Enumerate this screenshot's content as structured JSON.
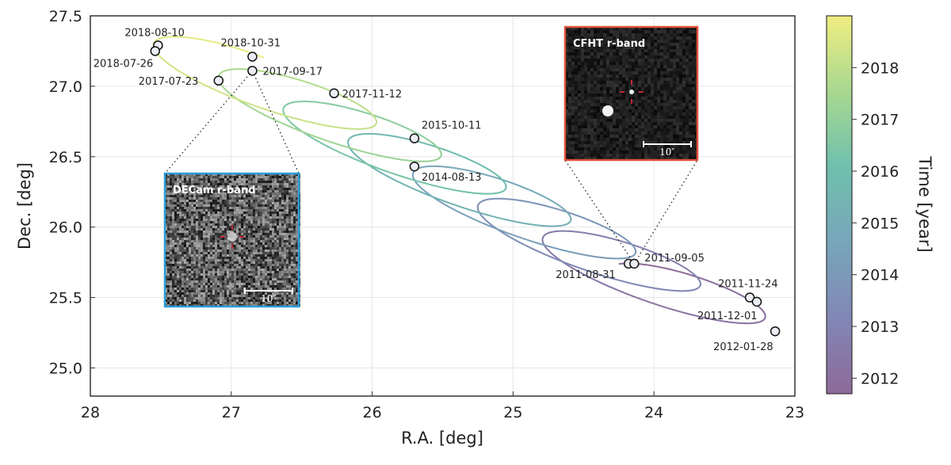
{
  "chart_data": {
    "type": "scatter",
    "title": "",
    "xlabel": "R.A. [deg]",
    "ylabel": "Dec. [deg]",
    "xlim": [
      28,
      23
    ],
    "ylim": [
      24.8,
      27.5
    ],
    "x_inverted": true,
    "grid": true,
    "xticks": [
      28,
      27,
      26,
      25,
      24,
      23
    ],
    "yticks": [
      25.0,
      25.5,
      26.0,
      26.5,
      27.0,
      27.5
    ],
    "xtick_labels": [
      "28",
      "27",
      "26",
      "25",
      "24",
      "23"
    ],
    "ytick_labels": [
      "25.0",
      "25.5",
      "26.0",
      "26.5",
      "27.0",
      "27.5"
    ],
    "points": [
      {
        "label": "2018-08-10",
        "ra": 27.52,
        "dec": 27.29
      },
      {
        "label": "2018-07-26",
        "ra": 27.54,
        "dec": 27.25
      },
      {
        "label": "2018-10-31",
        "ra": 26.85,
        "dec": 27.21
      },
      {
        "label": "2017-09-17",
        "ra": 26.85,
        "dec": 27.11
      },
      {
        "label": "2017-07-23",
        "ra": 27.09,
        "dec": 27.04
      },
      {
        "label": "2017-11-12",
        "ra": 26.27,
        "dec": 26.95
      },
      {
        "label": "2015-10-11",
        "ra": 25.7,
        "dec": 26.63
      },
      {
        "label": "2014-08-13",
        "ra": 25.7,
        "dec": 26.43
      },
      {
        "label": "2011-08-31",
        "ra": 24.18,
        "dec": 25.74
      },
      {
        "label": "2011-09-05",
        "ra": 24.14,
        "dec": 25.74
      },
      {
        "label": "2011-11-24",
        "ra": 23.32,
        "dec": 25.5
      },
      {
        "label": "2011-12-01",
        "ra": 23.27,
        "dec": 25.47
      },
      {
        "label": "2012-01-28",
        "ra": 23.14,
        "dec": 25.26
      }
    ],
    "colorbar": {
      "label": "Time [year]",
      "range": [
        2011.7,
        2019.0
      ],
      "ticks": [
        2012,
        2013,
        2014,
        2015,
        2016,
        2017,
        2018
      ],
      "tick_labels": [
        "2012",
        "2013",
        "2014",
        "2015",
        "2016",
        "2017",
        "2018"
      ],
      "colormap": "viridis (faded)",
      "colors": [
        "#8e6a9a",
        "#8187b5",
        "#78a6ba",
        "#6fc0ad",
        "#a8d890",
        "#f0ee80"
      ]
    },
    "insets": [
      {
        "title": "DECam r-band",
        "scale_label": "10″",
        "border_color": "#2a9fd6",
        "zoom_of": "2017-09-17"
      },
      {
        "title": "CFHT r-band",
        "scale_label": "10″",
        "border_color": "#e0523a",
        "zoom_of": "2011-09-05"
      }
    ]
  }
}
